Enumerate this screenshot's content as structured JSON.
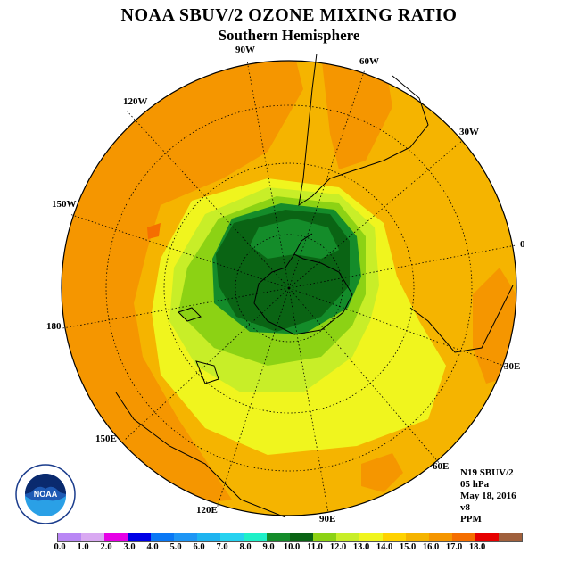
{
  "title": "NOAA SBUV/2 OZONE MIXING RATIO",
  "subtitle": "Southern Hemisphere",
  "longitude_labels": {
    "w90": "90W",
    "w60": "60W",
    "w120": "120W",
    "w30": "30W",
    "w150": "150W",
    "lon0": "0",
    "lon180": "180",
    "e30": "30E",
    "e150": "150E",
    "e60": "60E",
    "e120": "120E",
    "e90": "90E"
  },
  "info": {
    "instrument": "N19 SBUV/2",
    "pressure": "05 hPa",
    "date": "May 18, 2016",
    "version": "v8",
    "units": "PPM"
  },
  "logo_text": "NOAA",
  "colorbar": {
    "colors": [
      "#b987f5",
      "#d9a9f2",
      "#e600e6",
      "#0000e6",
      "#0a78f5",
      "#1e96f5",
      "#1eb4f0",
      "#26d2f0",
      "#1ef0c8",
      "#148c2a",
      "#0a6414",
      "#8cd214",
      "#c8ee28",
      "#f0f51e",
      "#ffd200",
      "#f5b400",
      "#f59600",
      "#f56e00",
      "#e60000",
      "#a0603c"
    ],
    "labels": [
      "0.0",
      "1.0",
      "2.0",
      "3.0",
      "4.0",
      "5.0",
      "6.0",
      "7.0",
      "8.0",
      "9.0",
      "10.0",
      "11.0",
      "12.0",
      "13.0",
      "14.0",
      "15.0",
      "16.0",
      "17.0",
      "18.0"
    ]
  }
}
